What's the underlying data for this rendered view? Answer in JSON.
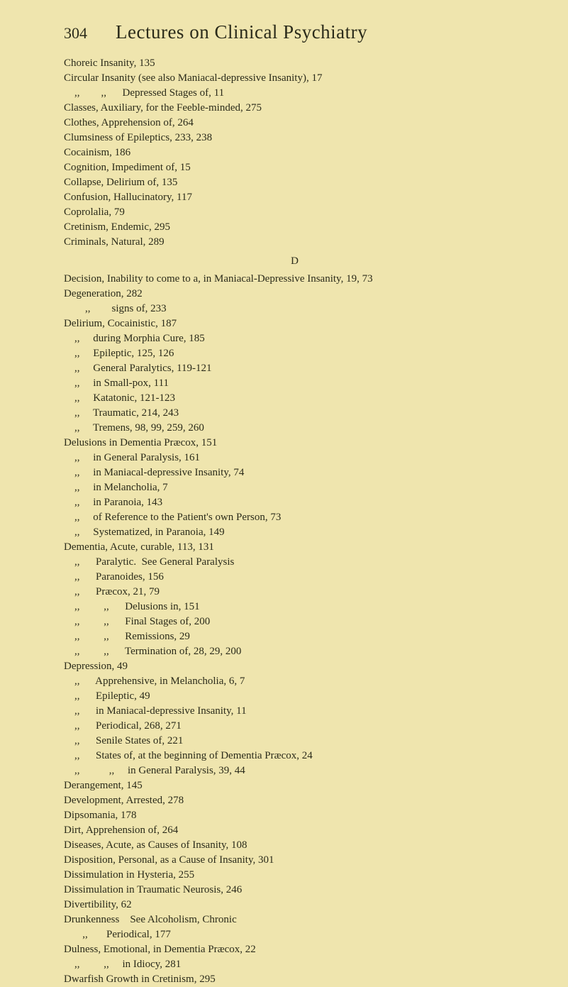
{
  "header": {
    "pageNumber": "304",
    "title": "Lectures on Clinical Psychiatry"
  },
  "sectionLetter": "D",
  "entries": [
    "Choreic Insanity, 135",
    "Circular Insanity (see also Maniacal-depressive Insanity), 17",
    "    ,,        ,,      Depressed Stages of, 11",
    "Classes, Auxiliary, for the Feeble-minded, 275",
    "Clothes, Apprehension of, 264",
    "Clumsiness of Epileptics, 233, 238",
    "Cocainism, 186",
    "Cognition, Impediment of, 15",
    "Collapse, Delirium of, 135",
    "Confusion, Hallucinatory, 117",
    "Coprolalia, 79",
    "Cretinism, Endemic, 295",
    "Criminals, Natural, 289"
  ],
  "entriesD": [
    "Decision, Inability to come to a, in Maniacal-Depressive Insanity, 19, 73",
    "Degeneration, 282",
    "        ,,        signs of, 233",
    "Delirium, Cocainistic, 187",
    "    ,,     during Morphia Cure, 185",
    "    ,,     Epileptic, 125, 126",
    "    ,,     General Paralytics, 119-121",
    "    ,,     in Small-pox, 111",
    "    ,,     Katatonic, 121-123",
    "    ,,     Traumatic, 214, 243",
    "    ,,     Tremens, 98, 99, 259, 260",
    "Delusions in Dementia Præcox, 151",
    "    ,,     in General Paralysis, 161",
    "    ,,     in Maniacal-depressive Insanity, 74",
    "    ,,     in Melancholia, 7",
    "    ,,     in Paranoia, 143",
    "    ,,     of Reference to the Patient's own Person, 73",
    "    ,,     Systematized, in Paranoia, 149",
    "Dementia, Acute, curable, 113, 131",
    "    ,,      Paralytic.  See General Paralysis",
    "    ,,      Paranoides, 156",
    "    ,,      Præcox, 21, 79",
    "    ,,         ,,      Delusions in, 151",
    "    ,,         ,,      Final Stages of, 200",
    "    ,,         ,,      Remissions, 29",
    "    ,,         ,,      Termination of, 28, 29, 200",
    "Depression, 49",
    "    ,,      Apprehensive, in Melancholia, 6, 7",
    "    ,,      Epileptic, 49",
    "    ,,      in Maniacal-depressive Insanity, 11",
    "    ,,      Periodical, 268, 271",
    "    ,,      Senile States of, 221",
    "    ,,      States of, at the beginning of Dementia Præcox, 24",
    "    ,,           ,,     in General Paralysis, 39, 44",
    "Derangement, 145",
    "Development, Arrested, 278",
    "Dipsomania, 178",
    "Dirt, Apprehension of, 264",
    "Diseases, Acute, as Causes of Insanity, 108",
    "Disposition, Personal, as a Cause of Insanity, 301",
    "Dissimulation in Hysteria, 255",
    "Dissimulation in Traumatic Neurosis, 246",
    "Divertibility, 62",
    "Drunkenness    See Alcoholism, Chronic",
    "       ,,       Periodical, 177",
    "Dulness, Emotional, in Dementia Præcox, 22",
    "    ,,         ,,     in Idiocy, 281",
    "Dwarfish Growth in Cretinism, 295"
  ]
}
